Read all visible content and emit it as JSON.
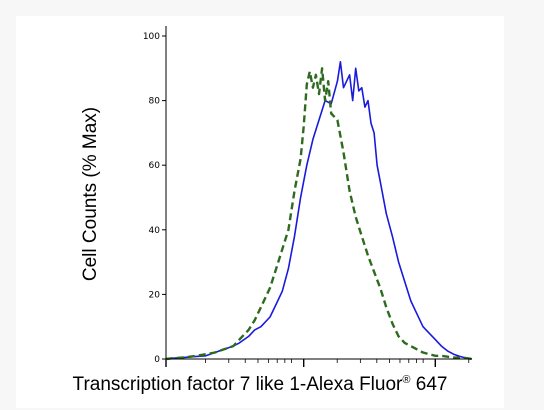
{
  "chart_data": {
    "type": "line",
    "title": "",
    "xlabel": "Transcription factor 7 like 1-Alexa Fluor",
    "xlabel_superscript": "®",
    "xlabel_suffix": "647",
    "ylabel": "Cell Counts (% Max)",
    "x_scale": "log",
    "x_range": [
      0,
      1
    ],
    "ylim": [
      0,
      100
    ],
    "y_ticks": [
      "0",
      "20",
      "40",
      "60",
      "80",
      "100"
    ],
    "series": [
      {
        "color": "#1a1adc",
        "style": "solid",
        "x": [
          0.0,
          0.03,
          0.06,
          0.1,
          0.13,
          0.16,
          0.19,
          0.22,
          0.24,
          0.27,
          0.29,
          0.31,
          0.34,
          0.36,
          0.38,
          0.4,
          0.42,
          0.44,
          0.46,
          0.48,
          0.5,
          0.52,
          0.54,
          0.56,
          0.57,
          0.58,
          0.6,
          0.61,
          0.62,
          0.63,
          0.64,
          0.65,
          0.66,
          0.67,
          0.68,
          0.69,
          0.7,
          0.72,
          0.74,
          0.76,
          0.78,
          0.8,
          0.82,
          0.84,
          0.86,
          0.88,
          0.9,
          0.92,
          0.94,
          0.96,
          0.98,
          1.0
        ],
        "y": [
          0,
          0.3,
          0.5,
          0.8,
          1,
          2,
          3,
          4,
          5,
          7,
          9,
          10,
          13,
          17,
          21,
          28,
          38,
          50,
          60,
          68,
          74,
          80,
          79,
          86,
          92,
          84,
          88,
          80,
          90,
          83,
          84,
          78,
          80,
          73,
          70,
          60,
          55,
          45,
          38,
          30,
          24,
          18,
          14,
          10,
          8,
          6,
          4,
          2.5,
          1.5,
          0.8,
          0.3,
          0
        ]
      },
      {
        "color": "#2e6b1f",
        "style": "dashed",
        "x": [
          0.0,
          0.03,
          0.06,
          0.1,
          0.13,
          0.16,
          0.19,
          0.22,
          0.24,
          0.27,
          0.29,
          0.31,
          0.34,
          0.36,
          0.38,
          0.4,
          0.42,
          0.44,
          0.45,
          0.46,
          0.47,
          0.48,
          0.49,
          0.5,
          0.51,
          0.52,
          0.53,
          0.54,
          0.56,
          0.58,
          0.6,
          0.62,
          0.64,
          0.66,
          0.68,
          0.7,
          0.72,
          0.74,
          0.76,
          0.78,
          0.8,
          0.82,
          0.84,
          0.86,
          0.88,
          0.9,
          0.92,
          0.94,
          0.96,
          0.98,
          1.0
        ],
        "y": [
          0,
          0.3,
          0.5,
          1,
          1.5,
          2,
          3,
          4,
          6,
          9,
          12,
          16,
          22,
          28,
          34,
          40,
          52,
          62,
          72,
          85,
          89,
          84,
          88,
          82,
          90,
          80,
          86,
          76,
          74,
          64,
          52,
          44,
          38,
          32,
          27,
          22,
          16,
          11,
          7,
          5,
          4,
          3,
          2,
          1.5,
          1,
          1,
          0.7,
          0.5,
          0.4,
          0.3,
          0
        ]
      }
    ]
  }
}
